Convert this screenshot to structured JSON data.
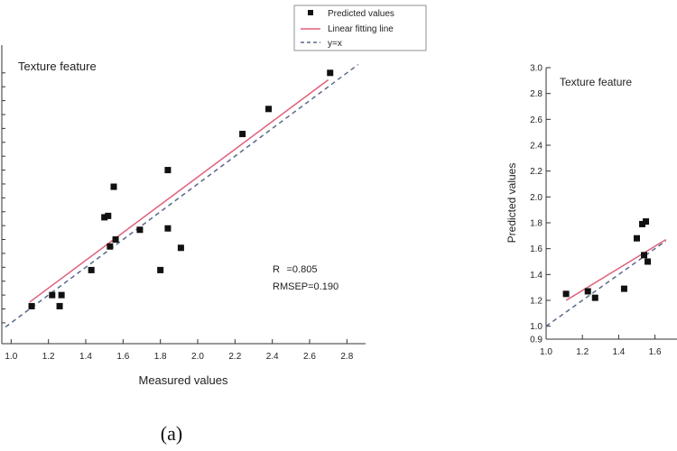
{
  "chart_data": [
    {
      "type": "scatter",
      "panel": "left",
      "annotation": "Texture feature",
      "xlabel": "Measured values",
      "ylabel": "",
      "xlim": [
        0.95,
        2.9
      ],
      "ylim": [
        0.85,
        3.0
      ],
      "xticks": [
        "1.0",
        "1.2",
        "1.4",
        "1.6",
        "1.8",
        "2.0",
        "2.2",
        "2.4",
        "2.6",
        "2.8"
      ],
      "grid": false,
      "legend": {
        "position": "top-right",
        "entries": [
          "Predicted values",
          "Linear fitting line",
          "y=x"
        ]
      },
      "series": [
        {
          "name": "Predicted values",
          "x": [
            1.11,
            1.22,
            1.26,
            1.27,
            1.43,
            1.5,
            1.52,
            1.53,
            1.55,
            1.55,
            1.56,
            1.69,
            1.8,
            1.84,
            1.84,
            1.91,
            2.24,
            2.38,
            2.71
          ],
          "y": [
            1.12,
            1.2,
            1.12,
            1.2,
            1.38,
            1.76,
            1.77,
            1.55,
            1.98,
            1.98,
            1.6,
            1.67,
            1.38,
            2.1,
            1.68,
            1.54,
            2.36,
            2.54,
            2.8
          ]
        }
      ],
      "fit_line": {
        "name": "Linear fitting line",
        "x": [
          1.1,
          2.7
        ],
        "y": [
          1.15,
          2.75
        ]
      },
      "identity_line": {
        "name": "y=x",
        "x": [
          0.97,
          2.86
        ],
        "y": [
          0.97,
          2.86
        ]
      },
      "stats": [
        "R=0.805",
        "RMSEP=0.190"
      ],
      "caption": "(a)",
      "colors": {
        "points": "#111111",
        "fit": "#e0607a",
        "identity": "#5a6a8a",
        "axis": "#333333"
      }
    },
    {
      "type": "scatter",
      "panel": "right",
      "annotation": "Texture feature",
      "xlabel": "",
      "ylabel": "Predicted values",
      "xlim": [
        1.0,
        2.0
      ],
      "ylim": [
        0.9,
        3.0
      ],
      "yticks": [
        "0.9",
        "1.0",
        "1.2",
        "1.4",
        "1.6",
        "1.8",
        "2.0",
        "2.2",
        "2.4",
        "2.6",
        "2.8",
        "3.0"
      ],
      "xticks": [
        "1.0",
        "1.2",
        "1.4",
        "1.6"
      ],
      "grid": false,
      "series": [
        {
          "name": "Predicted values",
          "x": [
            1.11,
            1.23,
            1.27,
            1.43,
            1.5,
            1.53,
            1.55,
            1.54,
            1.56
          ],
          "y": [
            1.25,
            1.27,
            1.22,
            1.29,
            1.68,
            1.79,
            1.81,
            1.55,
            1.5
          ]
        }
      ],
      "fit_line": {
        "x": [
          1.11,
          1.66
        ],
        "y": [
          1.2,
          1.67
        ]
      },
      "identity_line": {
        "x": [
          1.0,
          1.66
        ],
        "y": [
          1.0,
          1.66
        ]
      },
      "colors": {
        "points": "#111111",
        "fit": "#e0607a",
        "identity": "#5a6a8a",
        "axis": "#333333"
      }
    }
  ]
}
